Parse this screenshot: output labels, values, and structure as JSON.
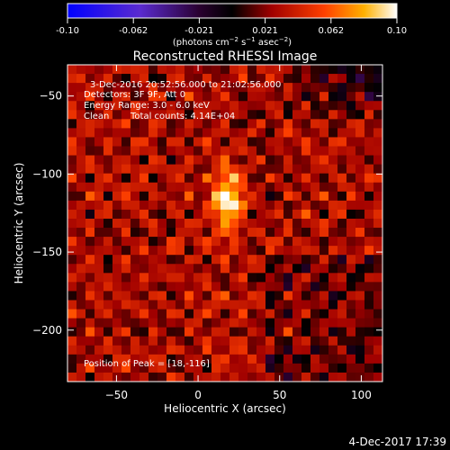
{
  "colorbar": {
    "ticks": [
      "-0.10",
      "-0.062",
      "-0.021",
      "0.021",
      "0.062",
      "0.10"
    ],
    "units_prefix": "(photons cm",
    "units_exp1": "−2",
    "units_mid": " s",
    "units_exp2": "−1",
    "units_end": " asec",
    "units_exp3": "−2",
    "units_close": ")"
  },
  "chart_data": {
    "type": "heatmap",
    "title": "Reconstructed RHESSI Image",
    "xlabel": "Heliocentric X (arcsec)",
    "ylabel": "Heliocentric Y (arcsec)",
    "xlim": [
      -80,
      113
    ],
    "ylim": [
      -233,
      -30
    ],
    "xticks": [
      -50,
      0,
      50,
      100
    ],
    "yticks": [
      -50,
      -100,
      -150,
      -200
    ],
    "color_scale": {
      "min": -0.1,
      "max": 0.1,
      "colormap": "blue-purple-black-red-yellow-white"
    },
    "peak": {
      "x": 18,
      "y": -116
    },
    "annotations": {
      "line1": "3-Dec-2016 20:52:56.000 to 21:02:56.000",
      "line2": "Detectors: 3F 9F, Att 0",
      "line3": "Energy Range: 3.0 - 6.0 keV",
      "line4_a": "Clean",
      "line4_b": "Total counts: 4.14E+04",
      "peak_label": "Position of Peak = [18,-116]"
    }
  },
  "footer": {
    "timestamp": "4-Dec-2017 17:39"
  }
}
